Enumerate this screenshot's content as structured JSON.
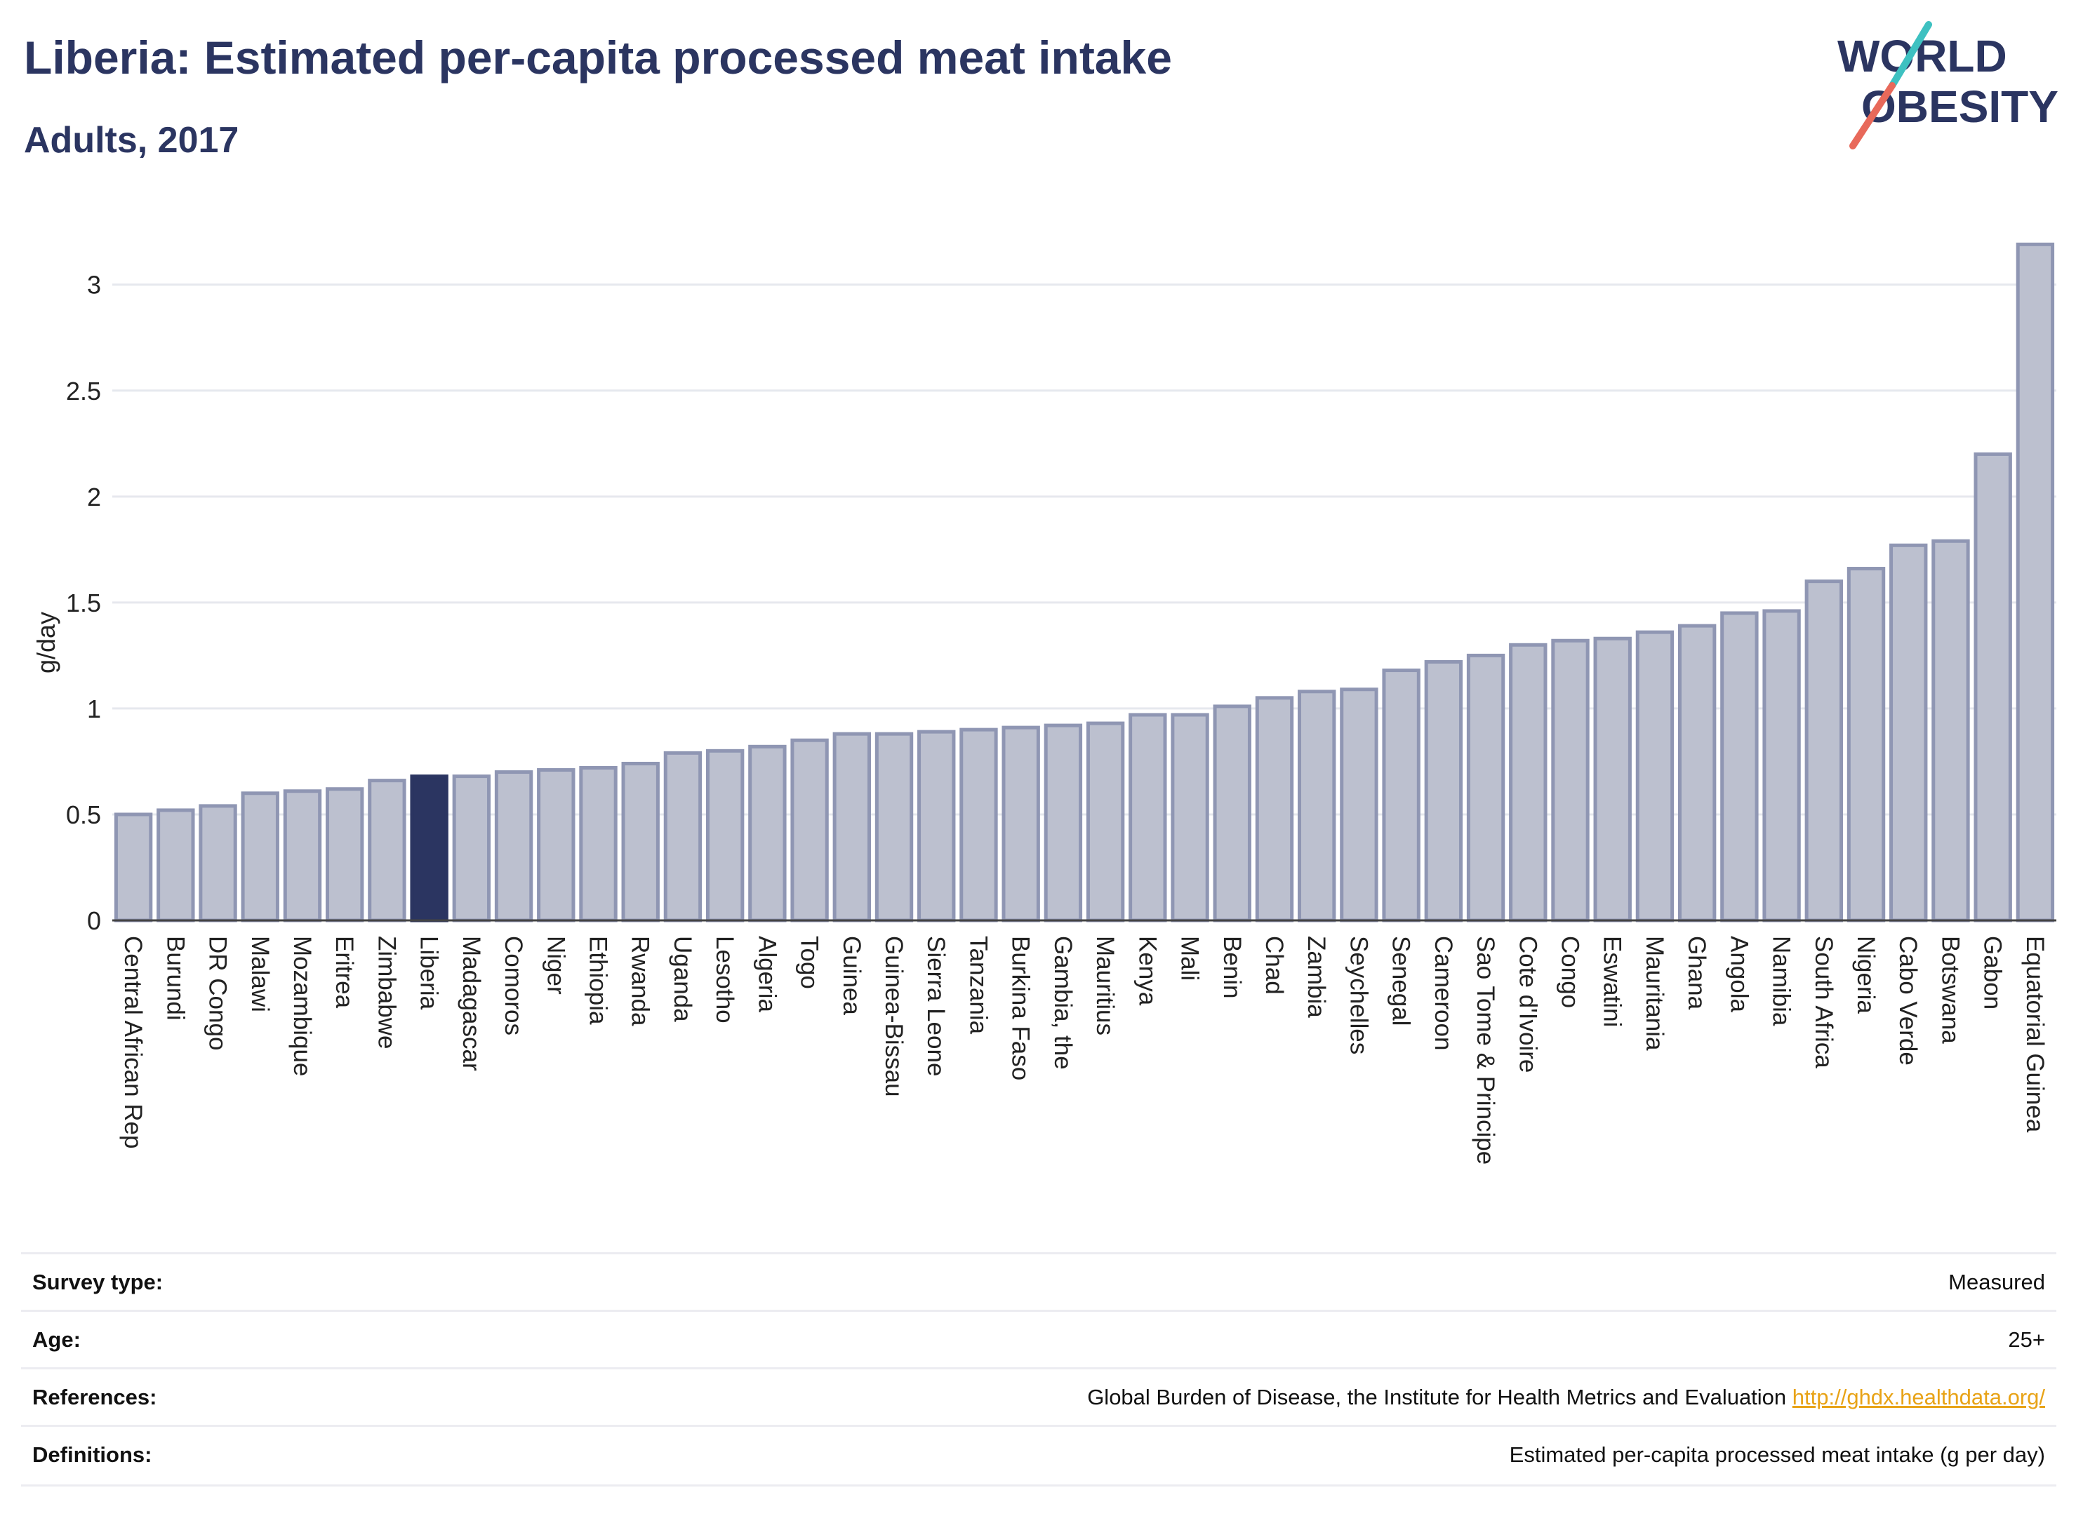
{
  "header": {
    "title": "Liberia: Estimated per-capita processed meat intake",
    "subtitle": "Adults, 2017"
  },
  "logo": {
    "line1": "WORLD",
    "line2": "OBESITY",
    "text_color": "#2b3561",
    "slash_top_color": "#3ec1c1",
    "slash_bottom_color": "#e8695a"
  },
  "colors": {
    "bar_fill": "#bcc0cf",
    "bar_stroke": "#8f96b3",
    "highlight_fill": "#2b3561",
    "grid": "#e6e8ee",
    "axis_text": "#222222"
  },
  "chart_data": {
    "type": "bar",
    "ylabel": "g/day",
    "xlabel": "",
    "ylim": [
      0,
      3.35
    ],
    "yticks": [
      0,
      0.5,
      1,
      1.5,
      2,
      2.5,
      3
    ],
    "ytick_labels": [
      "0",
      "0.5",
      "1",
      "1.5",
      "2",
      "2.5",
      "3"
    ],
    "grid": true,
    "highlight": "Liberia",
    "categories": [
      "Central African Rep",
      "Burundi",
      "DR Congo",
      "Malawi",
      "Mozambique",
      "Eritrea",
      "Zimbabwe",
      "Liberia",
      "Madagascar",
      "Comoros",
      "Niger",
      "Ethiopia",
      "Rwanda",
      "Uganda",
      "Lesotho",
      "Algeria",
      "Togo",
      "Guinea",
      "Guinea-Bissau",
      "Sierra Leone",
      "Tanzania",
      "Burkina Faso",
      "Gambia, the",
      "Mauritius",
      "Kenya",
      "Mali",
      "Benin",
      "Chad",
      "Zambia",
      "Seychelles",
      "Senegal",
      "Cameroon",
      "Sao Tome & Principe",
      "Cote d'Ivoire",
      "Congo",
      "Eswatini",
      "Mauritania",
      "Ghana",
      "Angola",
      "Namibia",
      "South Africa",
      "Nigeria",
      "Cabo Verde",
      "Botswana",
      "Gabon",
      "Equatorial Guinea"
    ],
    "values": [
      0.5,
      0.52,
      0.54,
      0.6,
      0.61,
      0.62,
      0.66,
      0.68,
      0.68,
      0.7,
      0.71,
      0.72,
      0.74,
      0.79,
      0.8,
      0.82,
      0.85,
      0.88,
      0.88,
      0.89,
      0.9,
      0.91,
      0.92,
      0.93,
      0.97,
      0.97,
      1.01,
      1.05,
      1.08,
      1.09,
      1.18,
      1.22,
      1.25,
      1.3,
      1.32,
      1.33,
      1.36,
      1.39,
      1.45,
      1.46,
      1.6,
      1.66,
      1.77,
      1.79,
      2.2,
      3.19
    ]
  },
  "footer": {
    "rows": [
      {
        "label": "Survey type:",
        "value": "Measured",
        "link": ""
      },
      {
        "label": "Age:",
        "value": "25+",
        "link": ""
      },
      {
        "label": "References:",
        "value": "Global Burden of Disease, the Institute for Health Metrics and Evaluation ",
        "link": "http://ghdx.healthdata.org/"
      },
      {
        "label": "Definitions:",
        "value": "Estimated per-capita processed meat intake (g per day)",
        "link": ""
      }
    ]
  }
}
